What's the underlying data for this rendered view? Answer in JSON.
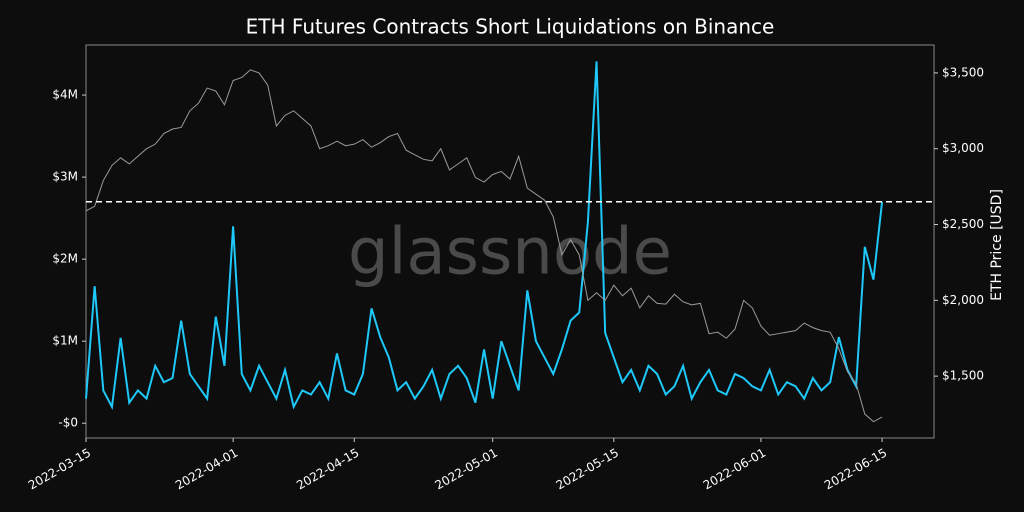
{
  "chart_data": {
    "type": "line",
    "title": "ETH Futures Contracts Short Liquidations on Binance",
    "y2label": "ETH Price [USD]",
    "watermark": "glassnode",
    "x": [
      "2022-03-15",
      "2022-03-16",
      "2022-03-17",
      "2022-03-18",
      "2022-03-19",
      "2022-03-20",
      "2022-03-21",
      "2022-03-22",
      "2022-03-23",
      "2022-03-24",
      "2022-03-25",
      "2022-03-26",
      "2022-03-27",
      "2022-03-28",
      "2022-03-29",
      "2022-03-30",
      "2022-03-31",
      "2022-04-01",
      "2022-04-02",
      "2022-04-03",
      "2022-04-04",
      "2022-04-05",
      "2022-04-06",
      "2022-04-07",
      "2022-04-08",
      "2022-04-09",
      "2022-04-10",
      "2022-04-11",
      "2022-04-12",
      "2022-04-13",
      "2022-04-14",
      "2022-04-15",
      "2022-04-16",
      "2022-04-17",
      "2022-04-18",
      "2022-04-19",
      "2022-04-20",
      "2022-04-21",
      "2022-04-22",
      "2022-04-23",
      "2022-04-24",
      "2022-04-25",
      "2022-04-26",
      "2022-04-27",
      "2022-04-28",
      "2022-04-29",
      "2022-04-30",
      "2022-05-01",
      "2022-05-02",
      "2022-05-03",
      "2022-05-04",
      "2022-05-05",
      "2022-05-06",
      "2022-05-07",
      "2022-05-08",
      "2022-05-09",
      "2022-05-10",
      "2022-05-11",
      "2022-05-12",
      "2022-05-13",
      "2022-05-14",
      "2022-05-15",
      "2022-05-16",
      "2022-05-17",
      "2022-05-18",
      "2022-05-19",
      "2022-05-20",
      "2022-05-21",
      "2022-05-22",
      "2022-05-23",
      "2022-05-24",
      "2022-05-25",
      "2022-05-26",
      "2022-05-27",
      "2022-05-28",
      "2022-05-29",
      "2022-05-30",
      "2022-05-31",
      "2022-06-01",
      "2022-06-02",
      "2022-06-03",
      "2022-06-04",
      "2022-06-05",
      "2022-06-06",
      "2022-06-07",
      "2022-06-08",
      "2022-06-09",
      "2022-06-10",
      "2022-06-11",
      "2022-06-12",
      "2022-06-13",
      "2022-06-14",
      "2022-06-15"
    ],
    "series": [
      {
        "name": "Short Liquidations",
        "color": "#1ec8f8",
        "values": [
          300000,
          1670000,
          400000,
          200000,
          1040000,
          250000,
          400000,
          300000,
          700000,
          500000,
          550000,
          1250000,
          600000,
          450000,
          300000,
          1300000,
          700000,
          2400000,
          600000,
          400000,
          700000,
          500000,
          300000,
          650000,
          200000,
          400000,
          350000,
          500000,
          300000,
          850000,
          400000,
          350000,
          600000,
          1400000,
          1050000,
          800000,
          400000,
          500000,
          300000,
          450000,
          650000,
          300000,
          600000,
          700000,
          550000,
          250000,
          900000,
          300000,
          1000000,
          700000,
          400000,
          1620000,
          1000000,
          800000,
          600000,
          900000,
          1250000,
          1350000,
          2450000,
          4410000,
          1100000,
          800000,
          500000,
          650000,
          400000,
          700000,
          600000,
          350000,
          450000,
          700000,
          300000,
          500000,
          650000,
          400000,
          350000,
          600000,
          550000,
          450000,
          400000,
          650000,
          350000,
          500000,
          450000,
          300000,
          550000,
          400000,
          500000,
          1050000,
          650000,
          450000,
          2150000,
          1750000,
          2700000
        ]
      },
      {
        "name": "ETH Price",
        "color": "#9a9a9a",
        "axis": "y2",
        "values": [
          2590,
          2620,
          2790,
          2890,
          2940,
          2900,
          2950,
          3000,
          3030,
          3100,
          3130,
          3140,
          3250,
          3300,
          3400,
          3380,
          3290,
          3450,
          3470,
          3520,
          3500,
          3420,
          3150,
          3220,
          3250,
          3200,
          3150,
          3000,
          3020,
          3050,
          3020,
          3030,
          3060,
          3010,
          3040,
          3080,
          3100,
          2990,
          2960,
          2930,
          2920,
          3000,
          2860,
          2900,
          2940,
          2810,
          2780,
          2830,
          2850,
          2800,
          2950,
          2740,
          2700,
          2660,
          2550,
          2300,
          2400,
          2300,
          2000,
          2050,
          2000,
          2100,
          2030,
          2080,
          1950,
          2030,
          1980,
          1975,
          2040,
          1990,
          1970,
          1980,
          1780,
          1790,
          1750,
          1810,
          2000,
          1950,
          1830,
          1770,
          1780,
          1790,
          1800,
          1850,
          1820,
          1800,
          1790,
          1680,
          1530,
          1450,
          1250,
          1200,
          1230
        ]
      }
    ],
    "reference_line": {
      "value": 2700000,
      "color": "#ffffff",
      "style": "dashed"
    },
    "xlim": [
      "2022-03-15",
      "2022-06-21"
    ],
    "xticks": [
      "2022-03-15",
      "2022-04-01",
      "2022-04-15",
      "2022-05-01",
      "2022-05-15",
      "2022-06-01",
      "2022-06-15"
    ],
    "ylim": [
      -180000,
      4610000
    ],
    "yticks": [
      {
        "value": 0,
        "label": "-$0"
      },
      {
        "value": 1000000,
        "label": "$1M"
      },
      {
        "value": 2000000,
        "label": "$2M"
      },
      {
        "value": 3000000,
        "label": "$3M"
      },
      {
        "value": 4000000,
        "label": "$4M"
      }
    ],
    "y2lim": [
      1092,
      3684
    ],
    "y2ticks": [
      {
        "value": 1500,
        "label": "$1,500"
      },
      {
        "value": 2000,
        "label": "$2,000"
      },
      {
        "value": 2500,
        "label": "$2,500"
      },
      {
        "value": 3000,
        "label": "$3,000"
      },
      {
        "value": 3500,
        "label": "$3,500"
      }
    ],
    "grid": false
  }
}
